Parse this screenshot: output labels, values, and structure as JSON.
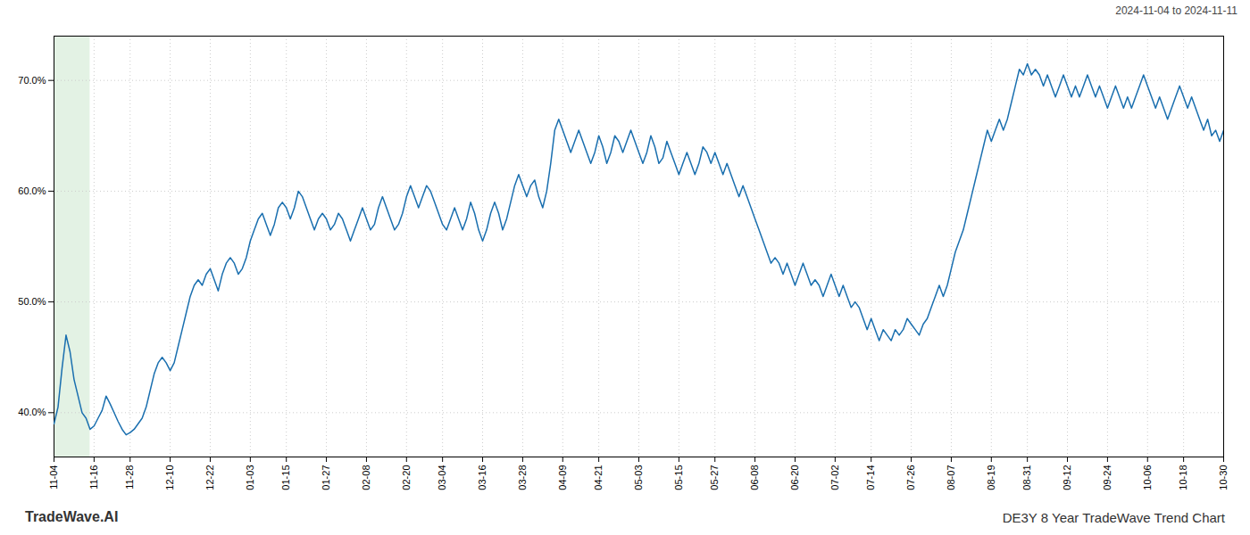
{
  "chart_data": {
    "type": "line",
    "title": "DE3Y 8 Year TradeWave Trend Chart",
    "subtitle": "2024-11-04 to 2024-11-11",
    "annotations": [
      {
        "type": "text",
        "text": "TradeWave.AI"
      },
      {
        "type": "span",
        "from": 0,
        "to": 9,
        "color": "#c8e6c9"
      }
    ],
    "color": "#1a6faf",
    "grid": true,
    "ylim": [
      36,
      74
    ],
    "yticks": [
      {
        "value": 40.0,
        "label": "40.0%"
      },
      {
        "value": 50.0,
        "label": "50.0%"
      },
      {
        "value": 60.0,
        "label": "60.0%"
      },
      {
        "value": 70.0,
        "label": "70.0%"
      }
    ],
    "categories": [
      "11-04",
      null,
      null,
      null,
      null,
      null,
      null,
      null,
      null,
      null,
      "11-16",
      null,
      null,
      null,
      null,
      null,
      null,
      null,
      null,
      "11-28",
      null,
      null,
      null,
      null,
      null,
      null,
      null,
      null,
      null,
      "12-10",
      null,
      null,
      null,
      null,
      null,
      null,
      null,
      null,
      null,
      "12-22",
      null,
      null,
      null,
      null,
      null,
      null,
      null,
      null,
      null,
      "01-03",
      null,
      null,
      null,
      null,
      null,
      null,
      null,
      null,
      "01-15",
      null,
      null,
      null,
      null,
      null,
      null,
      null,
      null,
      null,
      "01-27",
      null,
      null,
      null,
      null,
      null,
      null,
      null,
      null,
      null,
      "02-08",
      null,
      null,
      null,
      null,
      null,
      null,
      null,
      null,
      null,
      "02-20",
      null,
      null,
      null,
      null,
      null,
      null,
      null,
      null,
      "03-04",
      null,
      null,
      null,
      null,
      null,
      null,
      null,
      null,
      null,
      "03-16",
      null,
      null,
      null,
      null,
      null,
      null,
      null,
      null,
      null,
      "03-28",
      null,
      null,
      null,
      null,
      null,
      null,
      null,
      null,
      null,
      "04-09",
      null,
      null,
      null,
      null,
      null,
      null,
      null,
      null,
      "04-21",
      null,
      null,
      null,
      null,
      null,
      null,
      null,
      null,
      null,
      "05-03",
      null,
      null,
      null,
      null,
      null,
      null,
      null,
      null,
      null,
      "05-15",
      null,
      null,
      null,
      null,
      null,
      null,
      null,
      null,
      "05-27",
      null,
      null,
      null,
      null,
      null,
      null,
      null,
      null,
      null,
      "06-08",
      null,
      null,
      null,
      null,
      null,
      null,
      null,
      null,
      null,
      "06-20",
      null,
      null,
      null,
      null,
      null,
      null,
      null,
      null,
      null,
      "07-02",
      null,
      null,
      null,
      null,
      null,
      null,
      null,
      null,
      "07-14",
      null,
      null,
      null,
      null,
      null,
      null,
      null,
      null,
      null,
      "07-26",
      null,
      null,
      null,
      null,
      null,
      null,
      null,
      null,
      null,
      "08-07",
      null,
      null,
      null,
      null,
      null,
      null,
      null,
      null,
      null,
      "08-19",
      null,
      null,
      null,
      null,
      null,
      null,
      null,
      null,
      "08-31",
      null,
      null,
      null,
      null,
      null,
      null,
      null,
      null,
      null,
      "09-12",
      null,
      null,
      null,
      null,
      null,
      null,
      null,
      null,
      null,
      "09-24",
      null,
      null,
      null,
      null,
      null,
      null,
      null,
      null,
      null,
      "10-06",
      null,
      null,
      null,
      null,
      null,
      null,
      null,
      null,
      "10-18",
      null,
      null,
      null,
      null,
      null,
      null,
      null,
      null,
      null,
      "10-30"
    ],
    "values": [
      39.0,
      40.5,
      44.0,
      47.0,
      45.5,
      43.0,
      41.5,
      40.0,
      39.5,
      38.5,
      38.8,
      39.5,
      40.2,
      41.5,
      40.8,
      40.0,
      39.2,
      38.5,
      38.0,
      38.2,
      38.5,
      39.0,
      39.5,
      40.5,
      42.0,
      43.5,
      44.5,
      45.0,
      44.5,
      43.8,
      44.5,
      46.0,
      47.5,
      49.0,
      50.5,
      51.5,
      52.0,
      51.5,
      52.5,
      53.0,
      52.0,
      51.0,
      52.5,
      53.5,
      54.0,
      53.5,
      52.5,
      53.0,
      54.0,
      55.5,
      56.5,
      57.5,
      58.0,
      57.0,
      56.0,
      57.0,
      58.5,
      59.0,
      58.5,
      57.5,
      58.5,
      60.0,
      59.5,
      58.5,
      57.5,
      56.5,
      57.5,
      58.0,
      57.5,
      56.5,
      57.0,
      58.0,
      57.5,
      56.5,
      55.5,
      56.5,
      57.5,
      58.5,
      57.5,
      56.5,
      57.0,
      58.5,
      59.5,
      58.5,
      57.5,
      56.5,
      57.0,
      58.0,
      59.5,
      60.5,
      59.5,
      58.5,
      59.5,
      60.5,
      60.0,
      59.0,
      58.0,
      57.0,
      56.5,
      57.5,
      58.5,
      57.5,
      56.5,
      57.5,
      59.0,
      58.0,
      56.5,
      55.5,
      56.5,
      58.0,
      59.0,
      58.0,
      56.5,
      57.5,
      59.0,
      60.5,
      61.5,
      60.5,
      59.5,
      60.5,
      61.0,
      59.5,
      58.5,
      60.0,
      62.5,
      65.5,
      66.5,
      65.5,
      64.5,
      63.5,
      64.5,
      65.5,
      64.5,
      63.5,
      62.5,
      63.5,
      65.0,
      64.0,
      62.5,
      63.5,
      65.0,
      64.5,
      63.5,
      64.5,
      65.5,
      64.5,
      63.5,
      62.5,
      63.5,
      65.0,
      64.0,
      62.5,
      63.0,
      64.5,
      63.5,
      62.5,
      61.5,
      62.5,
      63.5,
      62.5,
      61.5,
      62.5,
      64.0,
      63.5,
      62.5,
      63.5,
      62.5,
      61.5,
      62.5,
      61.5,
      60.5,
      59.5,
      60.5,
      59.5,
      58.5,
      57.5,
      56.5,
      55.5,
      54.5,
      53.5,
      54.0,
      53.5,
      52.5,
      53.5,
      52.5,
      51.5,
      52.5,
      53.5,
      52.5,
      51.5,
      52.0,
      51.5,
      50.5,
      51.5,
      52.5,
      51.5,
      50.5,
      51.5,
      50.5,
      49.5,
      50.0,
      49.5,
      48.5,
      47.5,
      48.5,
      47.5,
      46.5,
      47.5,
      47.0,
      46.5,
      47.5,
      47.0,
      47.5,
      48.5,
      48.0,
      47.5,
      47.0,
      48.0,
      48.5,
      49.5,
      50.5,
      51.5,
      50.5,
      51.5,
      53.0,
      54.5,
      55.5,
      56.5,
      58.0,
      59.5,
      61.0,
      62.5,
      64.0,
      65.5,
      64.5,
      65.5,
      66.5,
      65.5,
      66.5,
      68.0,
      69.5,
      71.0,
      70.5,
      71.5,
      70.5,
      71.0,
      70.5,
      69.5,
      70.5,
      69.5,
      68.5,
      69.5,
      70.5,
      69.5,
      68.5,
      69.5,
      68.5,
      69.5,
      70.5,
      69.5,
      68.5,
      69.5,
      68.5,
      67.5,
      68.5,
      69.5,
      68.5,
      67.5,
      68.5,
      67.5,
      68.5,
      69.5,
      70.5,
      69.5,
      68.5,
      67.5,
      68.5,
      67.5,
      66.5,
      67.5,
      68.5,
      69.5,
      68.5,
      67.5,
      68.5,
      67.5,
      66.5,
      65.5,
      66.5,
      65.0,
      65.5,
      64.5,
      65.5
    ]
  }
}
